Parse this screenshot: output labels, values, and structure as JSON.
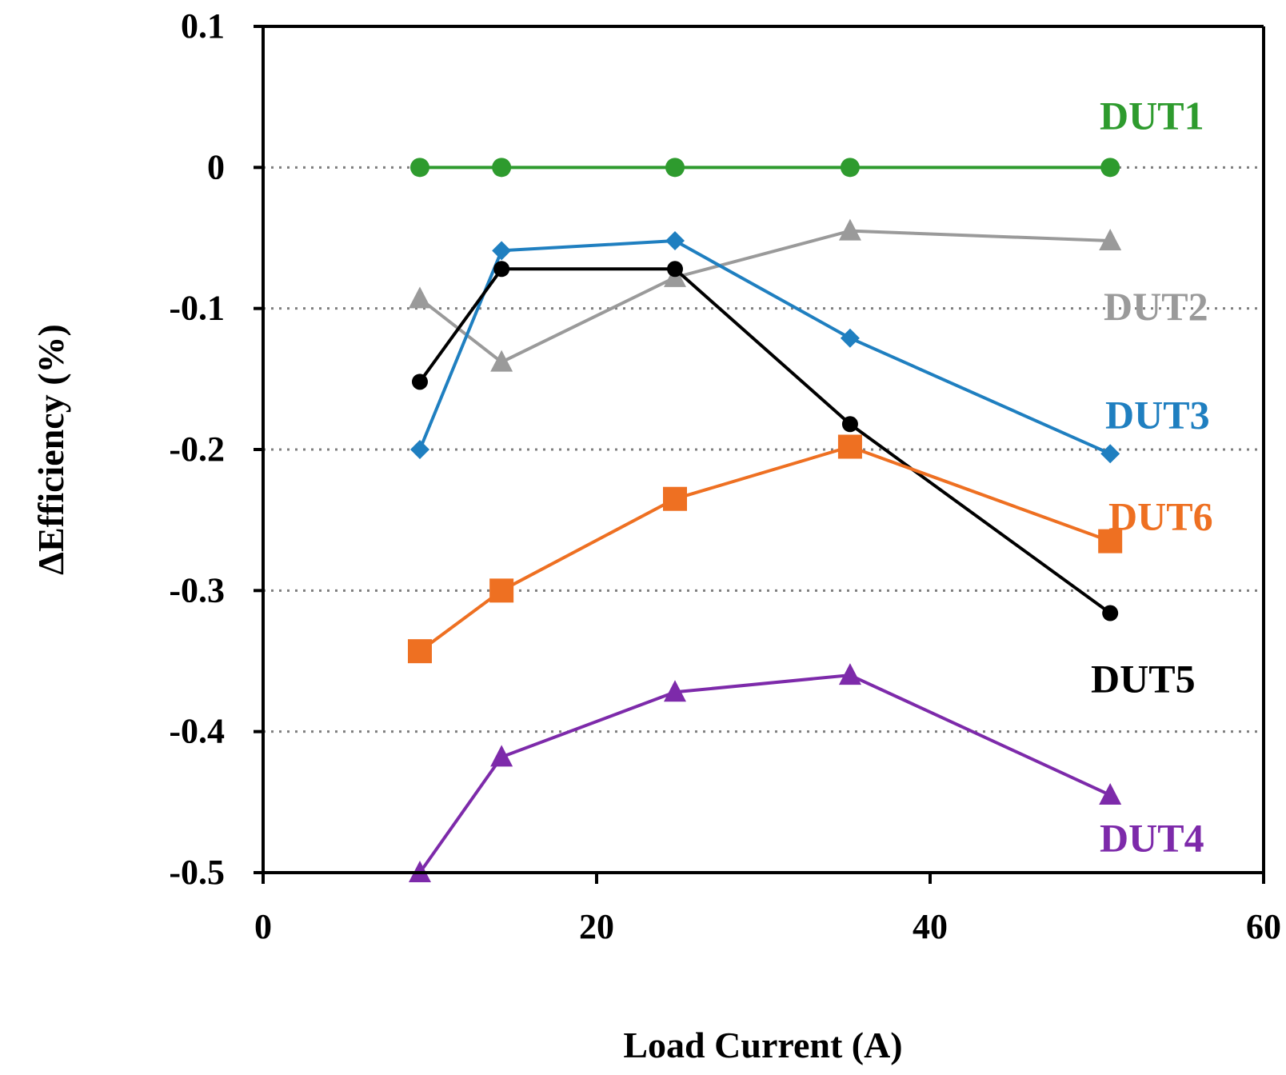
{
  "chart_data": {
    "type": "line",
    "title": "",
    "xlabel": "Load Current (A)",
    "ylabel": "ΔEfficiency (%)",
    "xlim": [
      0,
      60
    ],
    "ylim": [
      -0.5,
      0.1
    ],
    "xticks": [
      "0",
      "20",
      "40",
      "60"
    ],
    "yticks": [
      "0.1",
      "0",
      "-0.1",
      "-0.2",
      "-0.3",
      "-0.4",
      "-0.5"
    ],
    "grid": "horizontal dotted",
    "series": [
      {
        "name": "DUT1",
        "color": "#2e9b2e",
        "marker": "circle",
        "x": [
          9.4,
          14.3,
          24.7,
          35.2,
          50.8
        ],
        "y": [
          0,
          0,
          0,
          0,
          0
        ]
      },
      {
        "name": "DUT2",
        "color": "#9a9a9a",
        "marker": "triangle",
        "x": [
          9.4,
          14.3,
          24.7,
          35.2,
          50.8
        ],
        "y": [
          -0.093,
          -0.138,
          -0.078,
          -0.045,
          -0.052
        ]
      },
      {
        "name": "DUT3",
        "color": "#1f7fc0",
        "marker": "diamond",
        "x": [
          9.4,
          14.3,
          24.7,
          35.2,
          50.8
        ],
        "y": [
          -0.2,
          -0.059,
          -0.052,
          -0.121,
          -0.203
        ]
      },
      {
        "name": "DUT4",
        "color": "#7d2aaa",
        "marker": "triangle",
        "x": [
          9.4,
          14.3,
          24.7,
          35.2,
          50.8
        ],
        "y": [
          -0.5,
          -0.418,
          -0.372,
          -0.36,
          -0.445
        ]
      },
      {
        "name": "DUT5",
        "color": "#000000",
        "marker": "circle",
        "x": [
          9.4,
          14.3,
          24.7,
          35.2,
          50.8
        ],
        "y": [
          -0.152,
          -0.072,
          -0.072,
          -0.182,
          -0.316
        ]
      },
      {
        "name": "DUT6",
        "color": "#ee7022",
        "marker": "square",
        "x": [
          9.4,
          14.3,
          24.7,
          35.2,
          50.8
        ],
        "y": [
          -0.343,
          -0.3,
          -0.235,
          -0.198,
          -0.265
        ]
      }
    ]
  }
}
